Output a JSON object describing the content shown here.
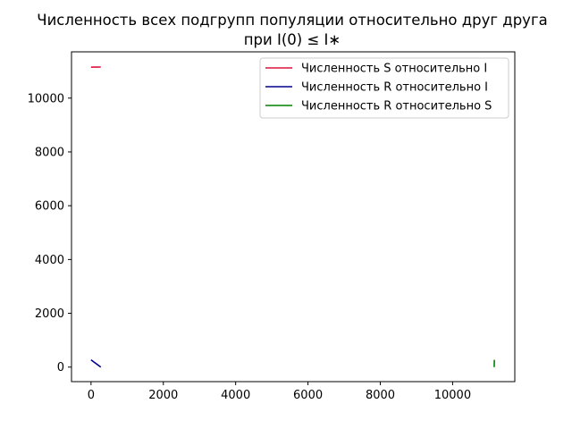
{
  "chart_data": {
    "type": "line",
    "title": [
      "Численность всех подгрупп популяции относительно друг друга",
      "при I(0) ≤ I∗"
    ],
    "xlabel": "",
    "ylabel": "",
    "xlim": [
      -540,
      11720
    ],
    "ylim": [
      -540,
      11720
    ],
    "x_ticks": [
      0,
      2000,
      4000,
      6000,
      8000,
      10000
    ],
    "y_ticks": [
      0,
      2000,
      4000,
      6000,
      8000,
      10000
    ],
    "grid": false,
    "legend_position": "top-right",
    "series": [
      {
        "name": "Численность S относительно I",
        "color": "#dc143c",
        "points": [
          [
            0,
            11150
          ],
          [
            90,
            11152
          ],
          [
            180,
            11153
          ],
          [
            270,
            11155
          ]
        ]
      },
      {
        "name": "Численность R относительно I",
        "color": "#00008b",
        "points": [
          [
            0,
            270
          ],
          [
            90,
            180
          ],
          [
            180,
            90
          ],
          [
            270,
            0
          ]
        ]
      },
      {
        "name": "Численность R относительно S",
        "color": "#008000",
        "points": [
          [
            11150,
            0
          ],
          [
            11152,
            90
          ],
          [
            11153,
            180
          ],
          [
            11155,
            270
          ]
        ]
      }
    ]
  }
}
